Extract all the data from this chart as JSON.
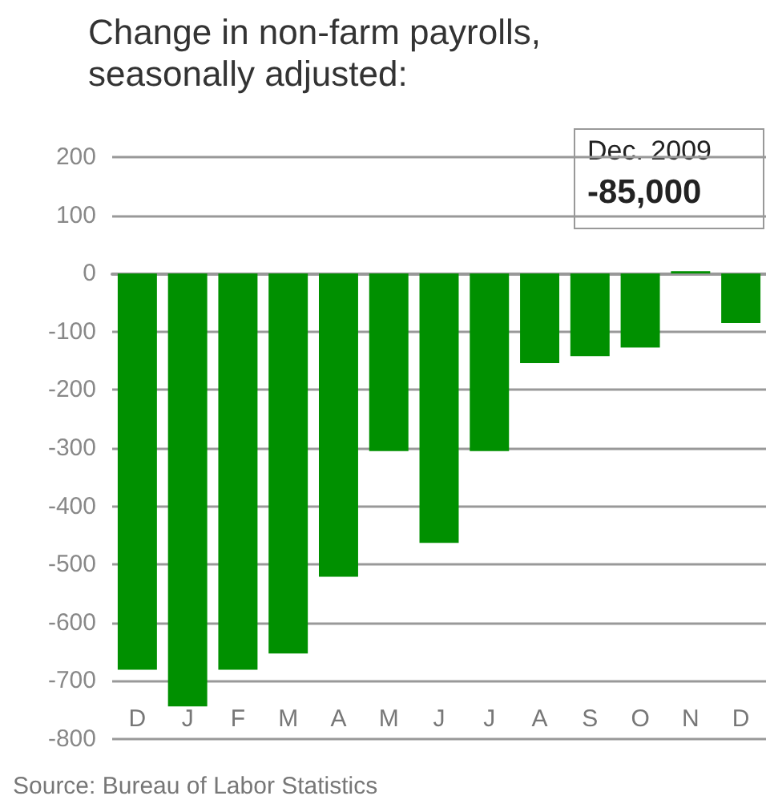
{
  "chart_data": {
    "type": "bar",
    "title": "Change in non-farm payrolls,\nseasonally adjusted:",
    "categories": [
      "D",
      "J",
      "F",
      "M",
      "A",
      "M",
      "J",
      "J",
      "A",
      "S",
      "O",
      "N",
      "D"
    ],
    "values": [
      -681,
      -744,
      -681,
      -653,
      -521,
      -305,
      -463,
      -305,
      -154,
      -142,
      -127,
      4,
      -85
    ],
    "color": "#009000",
    "ylim": [
      -800,
      200
    ],
    "yticks": [
      -800,
      -700,
      -600,
      -500,
      -400,
      -300,
      -200,
      -100,
      0,
      100,
      200
    ],
    "grid": "y",
    "annotations": [
      "Dec. 2009",
      "-85,000",
      "Source: Bureau of Labor Statistics"
    ]
  }
}
